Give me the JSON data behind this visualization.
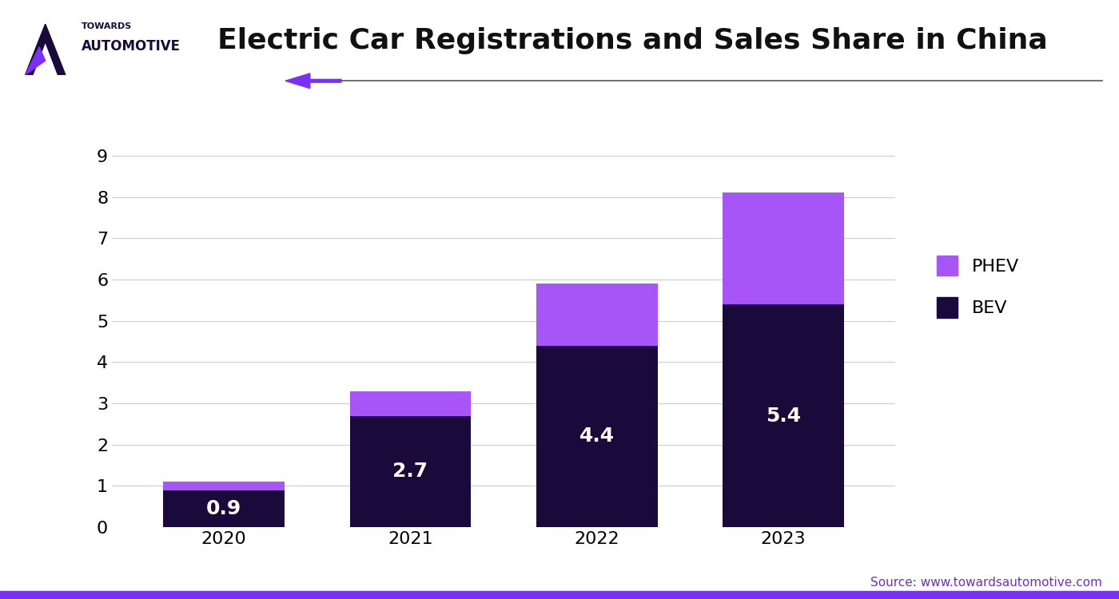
{
  "title": "Electric Car Registrations and Sales Share in China",
  "years": [
    "2020",
    "2021",
    "2022",
    "2023"
  ],
  "bev_values": [
    0.9,
    2.7,
    4.4,
    5.4
  ],
  "phev_values": [
    0.2,
    0.6,
    1.5,
    2.7
  ],
  "bev_color": "#1a0a3c",
  "phev_color": "#a855f7",
  "bar_width": 0.65,
  "ylim": [
    0,
    9
  ],
  "yticks": [
    0,
    1,
    2,
    3,
    4,
    5,
    6,
    7,
    8,
    9
  ],
  "title_fontsize": 26,
  "tick_fontsize": 16,
  "label_fontsize": 18,
  "legend_fontsize": 16,
  "source_text": "Source: www.towardsautomotive.com",
  "source_color": "#6633cc",
  "arrow_color": "#7b2ff7",
  "background_color": "#ffffff",
  "grid_color": "#cccccc",
  "bar_label_color_bev": "#ffffff",
  "bar_label_fontsize": 18,
  "logo_text_towards": "TOWARDS",
  "logo_text_auto": "AUTOMOTIVE",
  "bottom_bar_color": "#7b2ff7",
  "title_color": "#111111",
  "line_color": "#555555"
}
